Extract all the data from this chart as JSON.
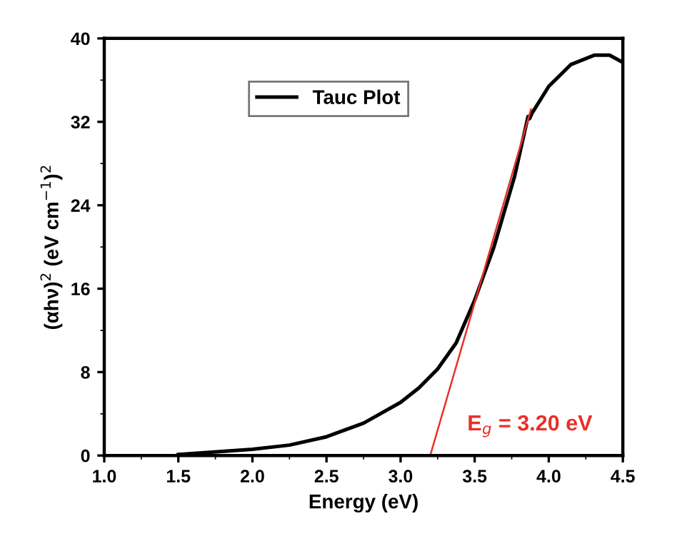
{
  "chart_data": {
    "type": "line",
    "xlabel": "Energy (eV)",
    "ylabel": "(αhν)$^{2}$ (eV cm$^{−1}$)$^{2}$",
    "xlim": [
      1.0,
      4.5
    ],
    "xticks": [
      {
        "value": 1.0,
        "label": "1.0"
      },
      1.5,
      {
        "value": 2.0,
        "label": "2.0"
      },
      2.5,
      {
        "value": 3.0,
        "label": "3.0"
      },
      3.5,
      {
        "value": 4.0,
        "label": "4.0"
      },
      4.5
    ],
    "ylim": [
      0,
      40
    ],
    "yticks": [
      0,
      8,
      16,
      24,
      32,
      40
    ],
    "series": [
      {
        "name": "Tauc Plot",
        "color": "#000000",
        "x": [
          1.5,
          2.0,
          2.25,
          2.5,
          2.75,
          3.0,
          3.125,
          3.25,
          3.375,
          3.5,
          3.63,
          3.77,
          3.86,
          3.87,
          3.89,
          4.0,
          4.15,
          4.31,
          4.41,
          4.5
        ],
        "values": [
          0.1,
          0.6,
          1.0,
          1.8,
          3.1,
          5.1,
          6.5,
          8.3,
          10.8,
          14.9,
          20.0,
          26.8,
          32.5,
          32.3,
          32.9,
          35.4,
          37.5,
          38.4,
          38.4,
          37.7
        ]
      },
      {
        "color": "#e8302a",
        "x": [
          3.88,
          3.2
        ],
        "values": [
          33.2,
          0
        ]
      }
    ],
    "annotations": [
      "E$_{g}$ = 3.20 eV"
    ],
    "legend": "top left",
    "grid": false,
    "marker": "none",
    "line_style": "solid"
  }
}
